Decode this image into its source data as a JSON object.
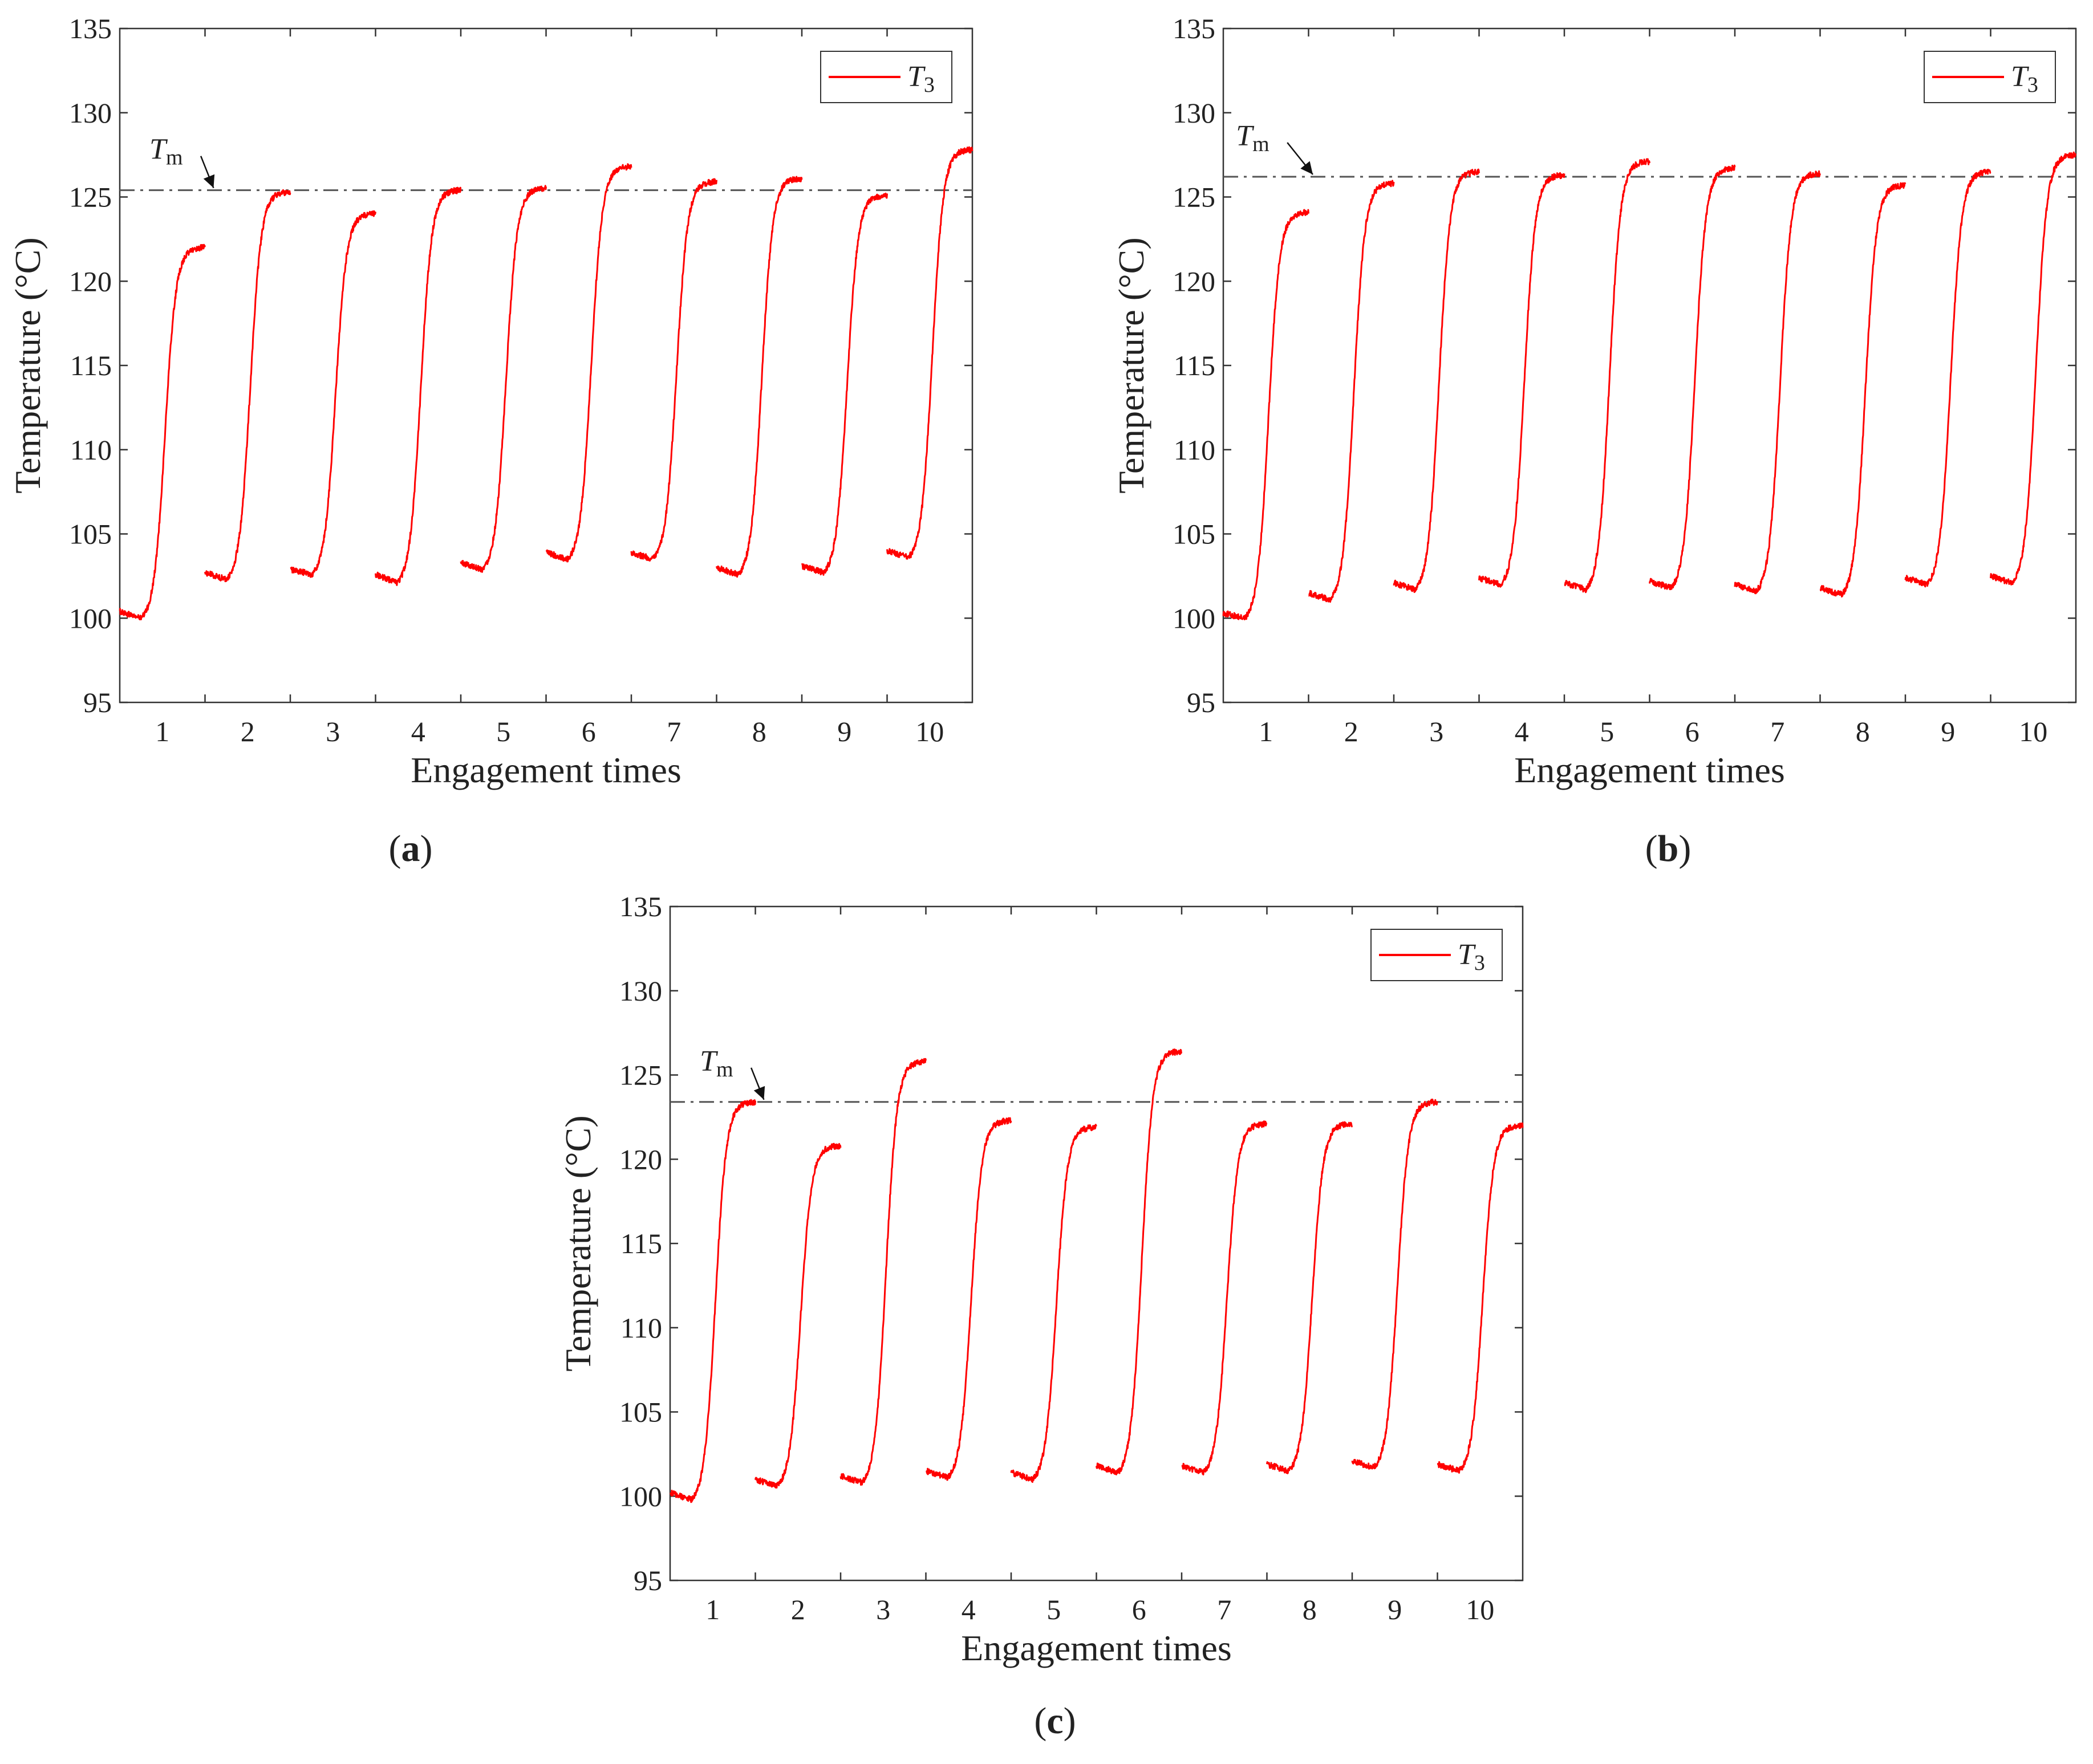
{
  "figure": {
    "panels": [
      "a",
      "b",
      "c"
    ]
  },
  "chart_data": [
    {
      "panel": "a",
      "caption_letter": "a",
      "type": "line",
      "title": "",
      "xlabel": "Engagement times",
      "ylabel": "Temperature (°C)",
      "xlim": [
        0.5,
        10.5
      ],
      "ylim": [
        95,
        135
      ],
      "yticks": [
        95,
        100,
        105,
        110,
        115,
        120,
        125,
        130,
        135
      ],
      "xticks": [
        1,
        2,
        3,
        4,
        5,
        6,
        7,
        8,
        9,
        10
      ],
      "grid": false,
      "legend": {
        "placement": "top-right",
        "entries": [
          {
            "name": "T",
            "subscript": "3",
            "color": "#ff0000"
          }
        ]
      },
      "reference_line": {
        "name": "T",
        "subscript": "m",
        "value": 125.4,
        "style": "dash-dot",
        "color": "#555555",
        "annotation_x": 1.25,
        "arrow_to_x": 1.6
      },
      "series": [
        {
          "name": "T3",
          "color": "#ff0000",
          "segments": [
            {
              "engagement": 1,
              "start": 100.4,
              "low": 100.0,
              "end": 122.0
            },
            {
              "engagement": 2,
              "start": 102.7,
              "low": 102.3,
              "end": 125.3
            },
            {
              "engagement": 3,
              "start": 102.9,
              "low": 102.6,
              "end": 124.0
            },
            {
              "engagement": 4,
              "start": 102.6,
              "low": 102.1,
              "end": 125.4
            },
            {
              "engagement": 5,
              "start": 103.3,
              "low": 102.9,
              "end": 125.5
            },
            {
              "engagement": 6,
              "start": 103.9,
              "low": 103.5,
              "end": 126.8
            },
            {
              "engagement": 7,
              "start": 103.9,
              "low": 103.5,
              "end": 125.9
            },
            {
              "engagement": 8,
              "start": 103.0,
              "low": 102.6,
              "end": 126.1
            },
            {
              "engagement": 9,
              "start": 103.1,
              "low": 102.7,
              "end": 125.1
            },
            {
              "engagement": 10,
              "start": 104.0,
              "low": 103.6,
              "end": 127.8
            }
          ]
        }
      ]
    },
    {
      "panel": "b",
      "caption_letter": "b",
      "type": "line",
      "title": "",
      "xlabel": "Engagement times",
      "ylabel": "Temperature (°C)",
      "xlim": [
        0.5,
        10.5
      ],
      "ylim": [
        95,
        135
      ],
      "yticks": [
        95,
        100,
        105,
        110,
        115,
        120,
        125,
        130,
        135
      ],
      "xticks": [
        1,
        2,
        3,
        4,
        5,
        6,
        7,
        8,
        9,
        10
      ],
      "grid": false,
      "legend": {
        "placement": "top-right",
        "entries": [
          {
            "name": "T",
            "subscript": "3",
            "color": "#ff0000"
          }
        ]
      },
      "reference_line": {
        "name": "T",
        "subscript": "m",
        "value": 126.2,
        "style": "dash-dot",
        "color": "#555555",
        "annotation_x": 1.05,
        "arrow_to_x": 1.55
      },
      "series": [
        {
          "name": "T3",
          "color": "#ff0000",
          "segments": [
            {
              "engagement": 1,
              "start": 100.3,
              "low": 100.0,
              "end": 124.1
            },
            {
              "engagement": 2,
              "start": 101.5,
              "low": 101.1,
              "end": 125.8
            },
            {
              "engagement": 3,
              "start": 102.1,
              "low": 101.7,
              "end": 126.5
            },
            {
              "engagement": 4,
              "start": 102.4,
              "low": 102.0,
              "end": 126.3
            },
            {
              "engagement": 5,
              "start": 102.1,
              "low": 101.7,
              "end": 127.1
            },
            {
              "engagement": 6,
              "start": 102.2,
              "low": 101.8,
              "end": 126.7
            },
            {
              "engagement": 7,
              "start": 102.0,
              "low": 101.6,
              "end": 126.4
            },
            {
              "engagement": 8,
              "start": 101.8,
              "low": 101.4,
              "end": 125.7
            },
            {
              "engagement": 9,
              "start": 102.4,
              "low": 102.0,
              "end": 126.5
            },
            {
              "engagement": 10,
              "start": 102.5,
              "low": 102.1,
              "end": 127.5
            }
          ]
        }
      ]
    },
    {
      "panel": "c",
      "caption_letter": "c",
      "type": "line",
      "title": "",
      "xlabel": "Engagement times",
      "ylabel": "Temperature (°C)",
      "xlim": [
        0.5,
        10.5
      ],
      "ylim": [
        95,
        135
      ],
      "yticks": [
        95,
        100,
        105,
        110,
        115,
        120,
        125,
        130,
        135
      ],
      "xticks": [
        1,
        2,
        3,
        4,
        5,
        6,
        7,
        8,
        9,
        10
      ],
      "grid": false,
      "legend": {
        "placement": "top-right",
        "entries": [
          {
            "name": "T",
            "subscript": "3",
            "color": "#ff0000"
          }
        ]
      },
      "reference_line": {
        "name": "T",
        "subscript": "m",
        "value": 123.4,
        "style": "dash-dot",
        "color": "#555555",
        "annotation_x": 1.25,
        "arrow_to_x": 1.6
      },
      "series": [
        {
          "name": "T3",
          "color": "#ff0000",
          "segments": [
            {
              "engagement": 1,
              "start": 100.2,
              "low": 99.8,
              "end": 123.4
            },
            {
              "engagement": 2,
              "start": 101.0,
              "low": 100.6,
              "end": 120.8
            },
            {
              "engagement": 3,
              "start": 101.2,
              "low": 100.8,
              "end": 125.8
            },
            {
              "engagement": 4,
              "start": 101.5,
              "low": 101.1,
              "end": 122.3
            },
            {
              "engagement": 5,
              "start": 101.4,
              "low": 101.0,
              "end": 121.9
            },
            {
              "engagement": 6,
              "start": 101.8,
              "low": 101.4,
              "end": 126.4
            },
            {
              "engagement": 7,
              "start": 101.8,
              "low": 101.4,
              "end": 122.1
            },
            {
              "engagement": 8,
              "start": 101.9,
              "low": 101.5,
              "end": 122.1
            },
            {
              "engagement": 9,
              "start": 102.1,
              "low": 101.7,
              "end": 123.4
            },
            {
              "engagement": 10,
              "start": 101.9,
              "low": 101.5,
              "end": 122.0
            }
          ]
        }
      ]
    }
  ]
}
